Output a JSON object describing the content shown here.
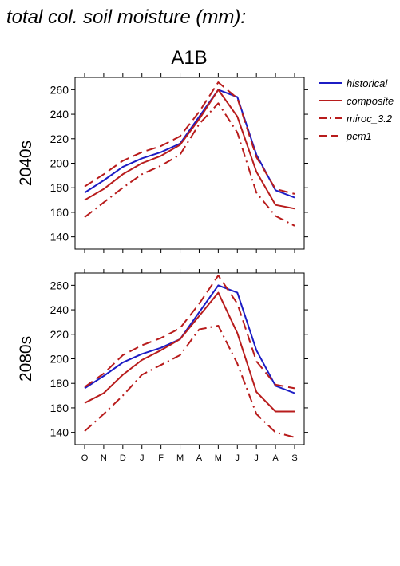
{
  "page_title": "total col. soil moisture (mm):",
  "scenario": "A1B",
  "colors": {
    "historical": "#1c1cc4",
    "composite": "#b81c1c",
    "miroc_3.2": "#b81c1c",
    "pcm1": "#b81c1c"
  },
  "chart_data": [
    {
      "type": "line",
      "panel_label": "2040s",
      "categories": [
        "O",
        "N",
        "D",
        "J",
        "F",
        "M",
        "A",
        "M",
        "J",
        "J",
        "A",
        "S"
      ],
      "ylim": [
        130,
        270
      ],
      "yticks": [
        140,
        160,
        180,
        200,
        220,
        240,
        260
      ],
      "grid": false,
      "legend_position": "right",
      "series": [
        {
          "name": "historical",
          "style": "solid",
          "color": "#1c1cc4",
          "values": [
            176,
            186,
            197,
            204,
            209,
            216,
            238,
            260,
            254,
            207,
            178,
            172
          ]
        },
        {
          "name": "composite",
          "style": "solid",
          "color": "#b81c1c",
          "values": [
            170,
            179,
            191,
            200,
            206,
            215,
            236,
            260,
            238,
            193,
            166,
            163
          ]
        },
        {
          "name": "miroc_3.2",
          "style": "dashdot",
          "color": "#b81c1c",
          "values": [
            156,
            168,
            180,
            191,
            198,
            207,
            232,
            249,
            225,
            176,
            157,
            149
          ]
        },
        {
          "name": "pcm1",
          "style": "dashed",
          "color": "#b81c1c",
          "values": [
            181,
            191,
            202,
            209,
            214,
            222,
            242,
            266,
            253,
            205,
            179,
            175
          ]
        }
      ]
    },
    {
      "type": "line",
      "panel_label": "2080s",
      "categories": [
        "O",
        "N",
        "D",
        "J",
        "F",
        "M",
        "A",
        "M",
        "J",
        "J",
        "A",
        "S"
      ],
      "ylim": [
        130,
        270
      ],
      "yticks": [
        140,
        160,
        180,
        200,
        220,
        240,
        260
      ],
      "grid": false,
      "legend_position": "right",
      "series": [
        {
          "name": "historical",
          "style": "solid",
          "color": "#1c1cc4",
          "values": [
            176,
            186,
            197,
            204,
            209,
            216,
            238,
            260,
            254,
            207,
            178,
            172
          ]
        },
        {
          "name": "composite",
          "style": "solid",
          "color": "#b81c1c",
          "values": [
            164,
            172,
            187,
            199,
            207,
            216,
            235,
            254,
            221,
            173,
            157,
            157
          ]
        },
        {
          "name": "miroc_3.2",
          "style": "dashdot",
          "color": "#b81c1c",
          "values": [
            141,
            155,
            170,
            187,
            195,
            203,
            224,
            227,
            196,
            155,
            140,
            136
          ]
        },
        {
          "name": "pcm1",
          "style": "dashed",
          "color": "#b81c1c",
          "values": [
            177,
            188,
            203,
            211,
            217,
            225,
            245,
            268,
            245,
            198,
            179,
            176
          ]
        }
      ]
    }
  ]
}
